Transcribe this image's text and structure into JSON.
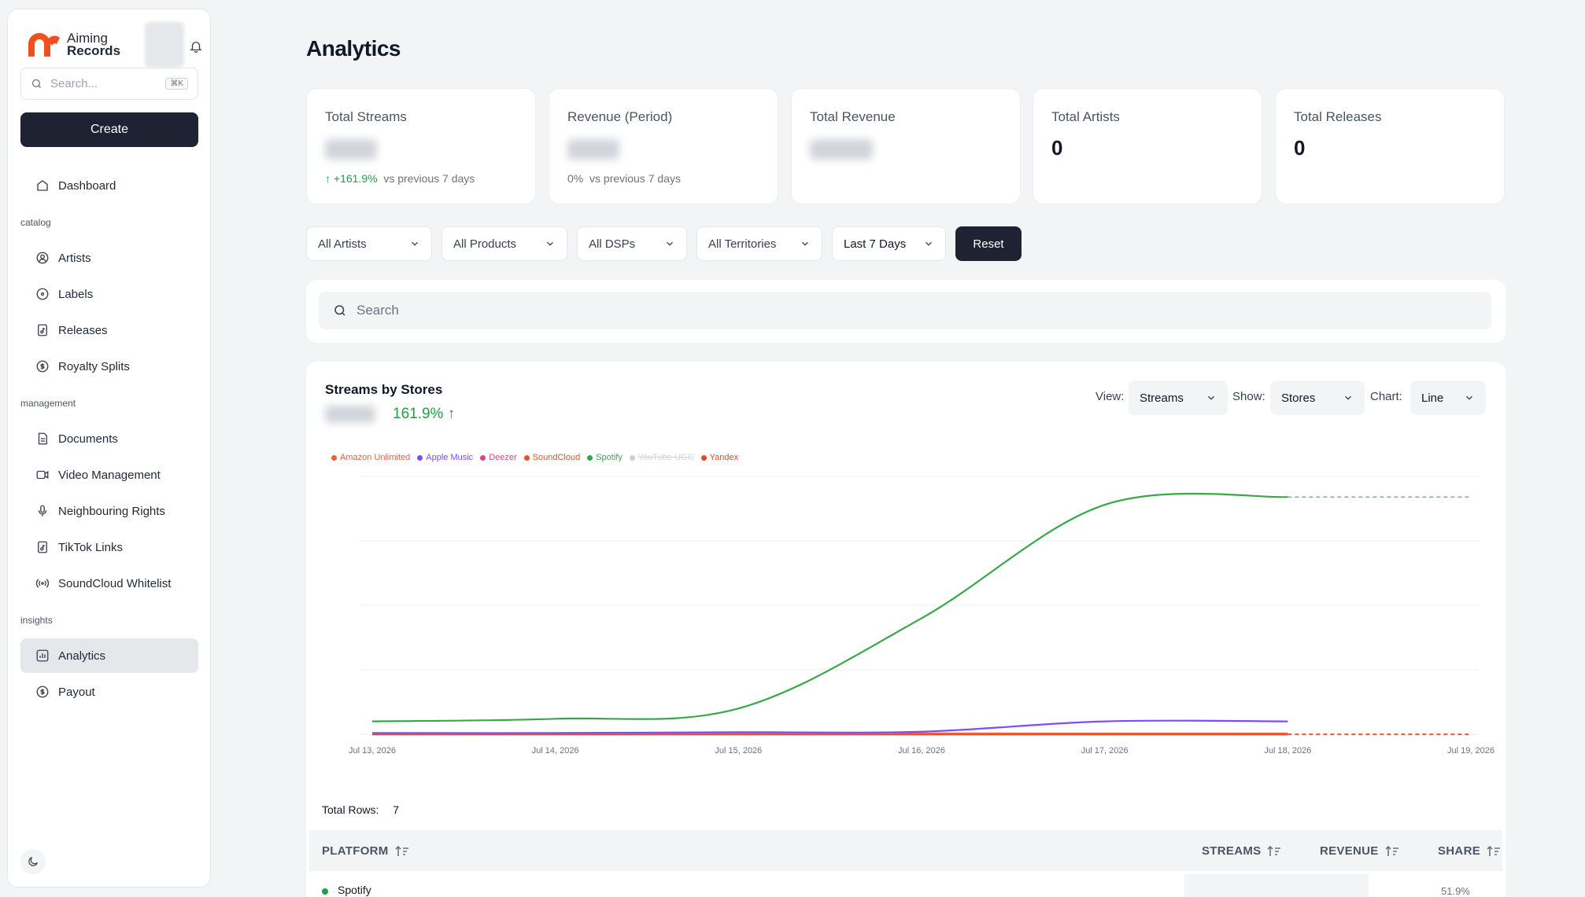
{
  "brand": {
    "line1": "Aiming",
    "line2": "Records",
    "accent": "#f0501e"
  },
  "sidebar": {
    "search_placeholder": "Search...",
    "search_shortcut": "⌘K",
    "create_label": "Create",
    "dashboard": "Dashboard",
    "sections": {
      "catalog": "catalog",
      "management": "management",
      "insights": "insights"
    },
    "catalog_items": [
      "Artists",
      "Labels",
      "Releases",
      "Royalty Splits"
    ],
    "management_items": [
      "Documents",
      "Video Management",
      "Neighbouring Rights",
      "TikTok Links",
      "SoundCloud Whitelist"
    ],
    "insights_items": [
      "Analytics",
      "Payout"
    ],
    "active_item": "Analytics"
  },
  "page": {
    "title": "Analytics"
  },
  "stats": [
    {
      "label": "Total Streams",
      "delta_value": "+161.9%",
      "delta_text": "vs previous 7 days"
    },
    {
      "label": "Revenue (Period)",
      "delta_value": "0%",
      "delta_text": "vs previous 7 days"
    },
    {
      "label": "Total Revenue"
    },
    {
      "label": "Total Artists",
      "value": "0"
    },
    {
      "label": "Total Releases",
      "value": "0"
    }
  ],
  "filters": {
    "artists": "All Artists",
    "products": "All Products",
    "dsps": "All DSPs",
    "territories": "All Territories",
    "period": "Last 7 Days",
    "reset": "Reset"
  },
  "main_search": {
    "placeholder": "Search"
  },
  "chart_panel": {
    "title": "Streams by Stores",
    "change": "161.9%",
    "view_label": "View:",
    "view_value": "Streams",
    "show_label": "Show:",
    "show_value": "Stores",
    "chart_label": "Chart:",
    "chart_value": "Line"
  },
  "chart_data": {
    "type": "line",
    "title": "Streams by Stores",
    "x": [
      "Jul 13, 2026",
      "Jul 14, 2026",
      "Jul 15, 2026",
      "Jul 16, 2026",
      "Jul 17, 2026",
      "Jul 18, 2026",
      "Jul 19, 2026"
    ],
    "ylim": [
      0,
      100
    ],
    "grid": true,
    "legend_position": "top-left",
    "series": [
      {
        "name": "Amazon Unlimited",
        "color": "#e8613a",
        "values": [
          0.3,
          0.3,
          0.3,
          0.3,
          0.3,
          0.3,
          0.3
        ]
      },
      {
        "name": "Apple Music",
        "color": "#7c4dff",
        "values": [
          0.5,
          0.5,
          0.8,
          1,
          5,
          5,
          0
        ]
      },
      {
        "name": "Deezer",
        "color": "#d9467a",
        "values": [
          0,
          0,
          0,
          0,
          0,
          0,
          0
        ]
      },
      {
        "name": "SoundCloud",
        "color": "#e8502a",
        "values": [
          0,
          0,
          0,
          0,
          0,
          0,
          0
        ]
      },
      {
        "name": "Spotify",
        "color": "#36a84a",
        "values": [
          5,
          6,
          10,
          45,
          89,
          92,
          92
        ]
      },
      {
        "name": "YouTube UGC",
        "color": "#cfcfcf",
        "values": [
          0,
          0,
          0,
          0,
          0,
          0,
          0
        ],
        "hidden": true
      },
      {
        "name": "Yandex",
        "color": "#e04a2a",
        "values": [
          0,
          0,
          0,
          0,
          0,
          0,
          0
        ]
      }
    ]
  },
  "table": {
    "total_rows_label": "Total Rows:",
    "total_rows": "7",
    "columns": [
      "PLATFORM",
      "STREAMS",
      "REVENUE",
      "SHARE"
    ],
    "rows": [
      {
        "platform": "Spotify",
        "share": "51.9%"
      }
    ]
  }
}
